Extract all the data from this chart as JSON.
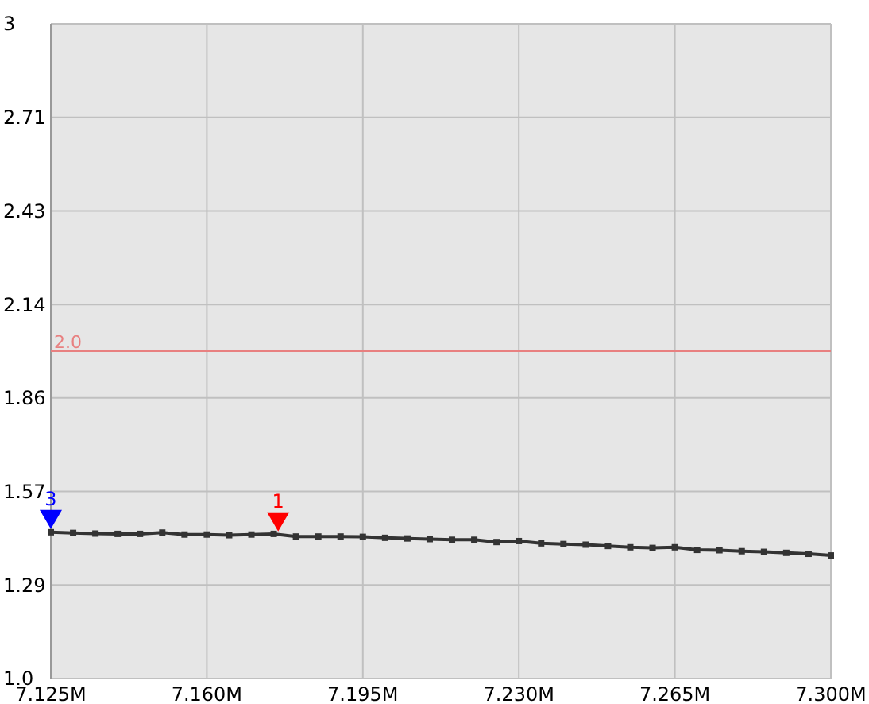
{
  "chart_data": {
    "type": "line",
    "x": [
      7.125,
      7.13,
      7.135,
      7.14,
      7.145,
      7.15,
      7.155,
      7.16,
      7.165,
      7.17,
      7.175,
      7.18,
      7.185,
      7.19,
      7.195,
      7.2,
      7.205,
      7.21,
      7.215,
      7.22,
      7.225,
      7.23,
      7.235,
      7.24,
      7.245,
      7.25,
      7.255,
      7.26,
      7.265,
      7.27,
      7.275,
      7.28,
      7.285,
      7.29,
      7.295,
      7.3
    ],
    "series": [
      {
        "color": "#333333",
        "values": [
          1.447,
          1.445,
          1.443,
          1.442,
          1.442,
          1.446,
          1.44,
          1.44,
          1.438,
          1.44,
          1.442,
          1.434,
          1.434,
          1.434,
          1.433,
          1.43,
          1.428,
          1.426,
          1.424,
          1.424,
          1.417,
          1.42,
          1.413,
          1.411,
          1.409,
          1.405,
          1.401,
          1.399,
          1.401,
          1.393,
          1.392,
          1.389,
          1.387,
          1.384,
          1.381,
          1.376
        ]
      }
    ],
    "xlim": [
      7.125,
      7.3
    ],
    "xticks": [
      {
        "value": 7.125,
        "label": "7.125M"
      },
      {
        "value": 7.16,
        "label": "7.160M"
      },
      {
        "value": 7.195,
        "label": "7.195M"
      },
      {
        "value": 7.23,
        "label": "7.230M"
      },
      {
        "value": 7.265,
        "label": "7.265M"
      },
      {
        "value": 7.3,
        "label": "7.300M"
      }
    ],
    "ylim": [
      1,
      3
    ],
    "yticks": [
      {
        "value": 1,
        "label": "1.0"
      },
      {
        "value": 1.2857,
        "label": "1.29"
      },
      {
        "value": 1.5714,
        "label": "1.57"
      },
      {
        "value": 1.8571,
        "label": "1.86"
      },
      {
        "value": 2.1429,
        "label": "2.14"
      },
      {
        "value": 2.4286,
        "label": "2.43"
      },
      {
        "value": 2.7143,
        "label": "2.71"
      },
      3
    ],
    "grid": true,
    "marker": "square",
    "line_style": "solid",
    "ref_lines": [
      {
        "axis": "y",
        "value": 2.0,
        "label": "2.0",
        "color": "#e88080"
      }
    ],
    "annotations": [
      {
        "text": "3",
        "x": 7.125,
        "y": 1.447
      },
      {
        "text": "1",
        "x": 7.176,
        "y": 1.44
      }
    ]
  }
}
